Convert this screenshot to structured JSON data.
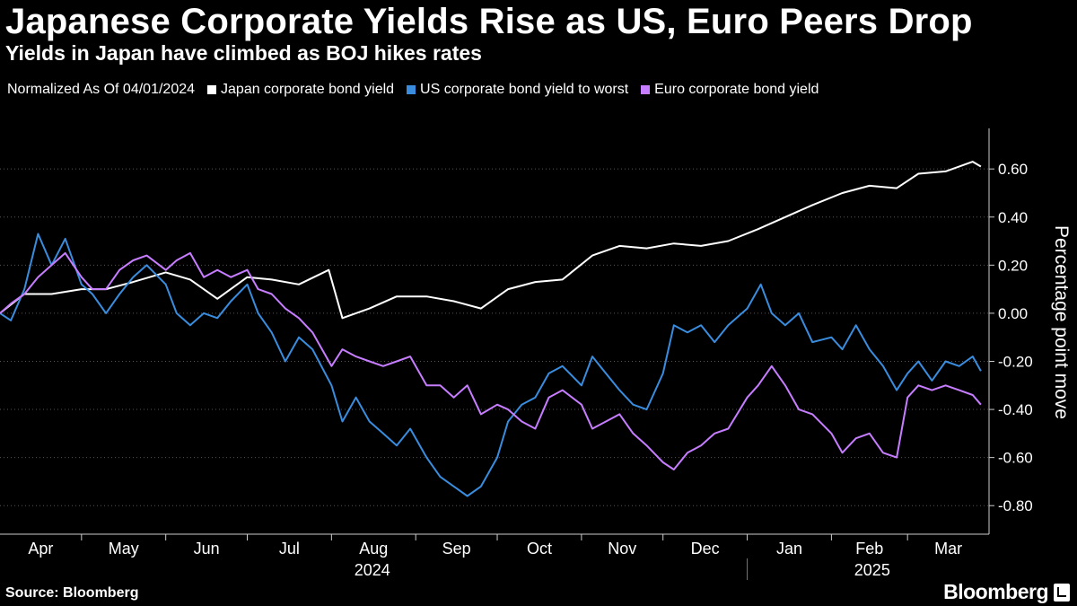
{
  "chart_data": {
    "type": "line",
    "title": "Japanese Corporate Yields Rise as US, Euro Peers Drop",
    "subtitle": "Yields in Japan have climbed as BOJ hikes rates",
    "legend_note": "Normalized As Of 04/01/2024",
    "ylabel": "Percentage point move",
    "ylim": [
      -0.9,
      0.75
    ],
    "yticks": [
      0.6,
      0.4,
      0.2,
      0.0,
      -0.2,
      -0.4,
      -0.6,
      -0.8
    ],
    "ytick_labels": [
      "0.60",
      "0.40",
      "0.20",
      "0.00",
      "-0.20",
      "-0.40",
      "-0.60",
      "-0.80"
    ],
    "xlim": [
      "2024-04-01",
      "2025-03-31"
    ],
    "month_labels": [
      "Apr",
      "May",
      "Jun",
      "Jul",
      "Aug",
      "Sep",
      "Oct",
      "Nov",
      "Dec",
      "Jan",
      "Feb",
      "Mar"
    ],
    "year_labels": [
      {
        "label": "2024",
        "date": "2024-08-16"
      },
      {
        "label": "2025",
        "date": "2025-02-16"
      }
    ],
    "grid": true,
    "legend_placement": "top",
    "series": [
      {
        "name": "Japan corporate bond yield",
        "color": "#ffffff",
        "points": [
          [
            "2024-04-01",
            0.0
          ],
          [
            "2024-04-10",
            0.08
          ],
          [
            "2024-04-20",
            0.08
          ],
          [
            "2024-05-01",
            0.1
          ],
          [
            "2024-05-10",
            0.1
          ],
          [
            "2024-05-20",
            0.13
          ],
          [
            "2024-06-01",
            0.17
          ],
          [
            "2024-06-10",
            0.14
          ],
          [
            "2024-06-20",
            0.06
          ],
          [
            "2024-07-01",
            0.15
          ],
          [
            "2024-07-10",
            0.14
          ],
          [
            "2024-07-20",
            0.12
          ],
          [
            "2024-07-31",
            0.18
          ],
          [
            "2024-08-05",
            -0.02
          ],
          [
            "2024-08-15",
            0.02
          ],
          [
            "2024-08-25",
            0.07
          ],
          [
            "2024-09-05",
            0.07
          ],
          [
            "2024-09-15",
            0.05
          ],
          [
            "2024-09-25",
            0.02
          ],
          [
            "2024-10-05",
            0.1
          ],
          [
            "2024-10-15",
            0.13
          ],
          [
            "2024-10-25",
            0.14
          ],
          [
            "2024-11-05",
            0.24
          ],
          [
            "2024-11-15",
            0.28
          ],
          [
            "2024-11-25",
            0.27
          ],
          [
            "2024-12-05",
            0.29
          ],
          [
            "2024-12-15",
            0.28
          ],
          [
            "2024-12-25",
            0.3
          ],
          [
            "2025-01-05",
            0.35
          ],
          [
            "2025-01-15",
            0.4
          ],
          [
            "2025-01-25",
            0.45
          ],
          [
            "2025-02-05",
            0.5
          ],
          [
            "2025-02-15",
            0.53
          ],
          [
            "2025-02-25",
            0.52
          ],
          [
            "2025-03-05",
            0.58
          ],
          [
            "2025-03-15",
            0.59
          ],
          [
            "2025-03-25",
            0.63
          ],
          [
            "2025-03-28",
            0.61
          ]
        ]
      },
      {
        "name": "US corporate bond yield to worst",
        "color": "#3a8dde",
        "points": [
          [
            "2024-04-01",
            0.0
          ],
          [
            "2024-04-05",
            -0.03
          ],
          [
            "2024-04-10",
            0.1
          ],
          [
            "2024-04-15",
            0.33
          ],
          [
            "2024-04-20",
            0.2
          ],
          [
            "2024-04-25",
            0.31
          ],
          [
            "2024-05-01",
            0.12
          ],
          [
            "2024-05-05",
            0.08
          ],
          [
            "2024-05-10",
            0.0
          ],
          [
            "2024-05-15",
            0.08
          ],
          [
            "2024-05-20",
            0.15
          ],
          [
            "2024-05-25",
            0.2
          ],
          [
            "2024-06-01",
            0.12
          ],
          [
            "2024-06-05",
            0.0
          ],
          [
            "2024-06-10",
            -0.05
          ],
          [
            "2024-06-15",
            0.0
          ],
          [
            "2024-06-20",
            -0.02
          ],
          [
            "2024-06-25",
            0.05
          ],
          [
            "2024-07-01",
            0.12
          ],
          [
            "2024-07-05",
            0.0
          ],
          [
            "2024-07-10",
            -0.08
          ],
          [
            "2024-07-15",
            -0.2
          ],
          [
            "2024-07-20",
            -0.1
          ],
          [
            "2024-07-25",
            -0.15
          ],
          [
            "2024-08-01",
            -0.3
          ],
          [
            "2024-08-05",
            -0.45
          ],
          [
            "2024-08-10",
            -0.35
          ],
          [
            "2024-08-15",
            -0.45
          ],
          [
            "2024-08-20",
            -0.5
          ],
          [
            "2024-08-25",
            -0.55
          ],
          [
            "2024-08-30",
            -0.48
          ],
          [
            "2024-09-05",
            -0.6
          ],
          [
            "2024-09-10",
            -0.68
          ],
          [
            "2024-09-15",
            -0.72
          ],
          [
            "2024-09-20",
            -0.76
          ],
          [
            "2024-09-25",
            -0.72
          ],
          [
            "2024-10-01",
            -0.6
          ],
          [
            "2024-10-05",
            -0.45
          ],
          [
            "2024-10-10",
            -0.38
          ],
          [
            "2024-10-15",
            -0.35
          ],
          [
            "2024-10-20",
            -0.25
          ],
          [
            "2024-10-25",
            -0.22
          ],
          [
            "2024-11-01",
            -0.3
          ],
          [
            "2024-11-05",
            -0.18
          ],
          [
            "2024-11-10",
            -0.25
          ],
          [
            "2024-11-15",
            -0.32
          ],
          [
            "2024-11-20",
            -0.38
          ],
          [
            "2024-11-25",
            -0.4
          ],
          [
            "2024-12-01",
            -0.25
          ],
          [
            "2024-12-05",
            -0.05
          ],
          [
            "2024-12-10",
            -0.08
          ],
          [
            "2024-12-15",
            -0.05
          ],
          [
            "2024-12-20",
            -0.12
          ],
          [
            "2024-12-25",
            -0.05
          ],
          [
            "2025-01-01",
            0.02
          ],
          [
            "2025-01-06",
            0.12
          ],
          [
            "2025-01-10",
            0.0
          ],
          [
            "2025-01-15",
            -0.05
          ],
          [
            "2025-01-20",
            0.0
          ],
          [
            "2025-01-25",
            -0.12
          ],
          [
            "2025-02-01",
            -0.1
          ],
          [
            "2025-02-05",
            -0.15
          ],
          [
            "2025-02-10",
            -0.05
          ],
          [
            "2025-02-15",
            -0.15
          ],
          [
            "2025-02-20",
            -0.22
          ],
          [
            "2025-02-25",
            -0.32
          ],
          [
            "2025-03-01",
            -0.25
          ],
          [
            "2025-03-05",
            -0.2
          ],
          [
            "2025-03-10",
            -0.28
          ],
          [
            "2025-03-15",
            -0.2
          ],
          [
            "2025-03-20",
            -0.22
          ],
          [
            "2025-03-25",
            -0.18
          ],
          [
            "2025-03-28",
            -0.24
          ]
        ]
      },
      {
        "name": "Euro corporate bond yield",
        "color": "#c77dff",
        "points": [
          [
            "2024-04-01",
            0.0
          ],
          [
            "2024-04-05",
            0.04
          ],
          [
            "2024-04-10",
            0.08
          ],
          [
            "2024-04-15",
            0.15
          ],
          [
            "2024-04-20",
            0.2
          ],
          [
            "2024-04-25",
            0.25
          ],
          [
            "2024-05-01",
            0.15
          ],
          [
            "2024-05-05",
            0.1
          ],
          [
            "2024-05-10",
            0.1
          ],
          [
            "2024-05-15",
            0.18
          ],
          [
            "2024-05-20",
            0.22
          ],
          [
            "2024-05-25",
            0.24
          ],
          [
            "2024-06-01",
            0.18
          ],
          [
            "2024-06-05",
            0.22
          ],
          [
            "2024-06-10",
            0.25
          ],
          [
            "2024-06-15",
            0.15
          ],
          [
            "2024-06-20",
            0.18
          ],
          [
            "2024-06-25",
            0.15
          ],
          [
            "2024-07-01",
            0.18
          ],
          [
            "2024-07-05",
            0.1
          ],
          [
            "2024-07-10",
            0.08
          ],
          [
            "2024-07-15",
            0.02
          ],
          [
            "2024-07-20",
            -0.02
          ],
          [
            "2024-07-25",
            -0.08
          ],
          [
            "2024-08-01",
            -0.22
          ],
          [
            "2024-08-05",
            -0.15
          ],
          [
            "2024-08-10",
            -0.18
          ],
          [
            "2024-08-15",
            -0.2
          ],
          [
            "2024-08-20",
            -0.22
          ],
          [
            "2024-08-25",
            -0.2
          ],
          [
            "2024-08-30",
            -0.18
          ],
          [
            "2024-09-05",
            -0.3
          ],
          [
            "2024-09-10",
            -0.3
          ],
          [
            "2024-09-15",
            -0.35
          ],
          [
            "2024-09-20",
            -0.3
          ],
          [
            "2024-09-25",
            -0.42
          ],
          [
            "2024-10-01",
            -0.38
          ],
          [
            "2024-10-05",
            -0.4
          ],
          [
            "2024-10-10",
            -0.45
          ],
          [
            "2024-10-15",
            -0.48
          ],
          [
            "2024-10-20",
            -0.35
          ],
          [
            "2024-10-25",
            -0.32
          ],
          [
            "2024-11-01",
            -0.38
          ],
          [
            "2024-11-05",
            -0.48
          ],
          [
            "2024-11-10",
            -0.45
          ],
          [
            "2024-11-15",
            -0.42
          ],
          [
            "2024-11-20",
            -0.5
          ],
          [
            "2024-11-25",
            -0.55
          ],
          [
            "2024-12-01",
            -0.62
          ],
          [
            "2024-12-05",
            -0.65
          ],
          [
            "2024-12-10",
            -0.58
          ],
          [
            "2024-12-15",
            -0.55
          ],
          [
            "2024-12-20",
            -0.5
          ],
          [
            "2024-12-25",
            -0.48
          ],
          [
            "2025-01-01",
            -0.35
          ],
          [
            "2025-01-05",
            -0.3
          ],
          [
            "2025-01-10",
            -0.22
          ],
          [
            "2025-01-15",
            -0.3
          ],
          [
            "2025-01-20",
            -0.4
          ],
          [
            "2025-01-25",
            -0.42
          ],
          [
            "2025-02-01",
            -0.5
          ],
          [
            "2025-02-05",
            -0.58
          ],
          [
            "2025-02-10",
            -0.52
          ],
          [
            "2025-02-15",
            -0.5
          ],
          [
            "2025-02-20",
            -0.58
          ],
          [
            "2025-02-25",
            -0.6
          ],
          [
            "2025-03-01",
            -0.35
          ],
          [
            "2025-03-05",
            -0.3
          ],
          [
            "2025-03-10",
            -0.32
          ],
          [
            "2025-03-15",
            -0.3
          ],
          [
            "2025-03-20",
            -0.32
          ],
          [
            "2025-03-25",
            -0.34
          ],
          [
            "2025-03-28",
            -0.38
          ]
        ]
      }
    ]
  },
  "footer": {
    "source": "Source: Bloomberg",
    "brand": "Bloomberg"
  }
}
